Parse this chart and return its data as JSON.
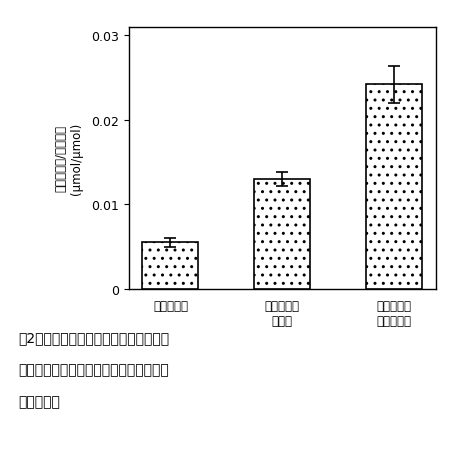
{
  "categories": [
    "贯蔵開始時",
    "空気下贯蔵\n２日後",
    "突気条件下\n贯蔵２日後"
  ],
  "values": [
    0.0055,
    0.013,
    0.0242
  ],
  "errors": [
    0.0005,
    0.0008,
    0.0022
  ],
  "ylim": [
    0,
    0.031
  ],
  "yticks": [
    0,
    0.01,
    0.02,
    0.03
  ],
  "ytick_labels": [
    "0",
    "0.01",
    "0.02",
    "0.03"
  ],
  "ylabel_line1": "遊離脂肪酸/全脂肪酸",
  "ylabel_line2": "(μmol/μmol)",
  "bar_color": "white",
  "bar_edgecolor": "black",
  "bar_width": 0.5,
  "hatch": "..",
  "figure_title_line1": "図2　花蓄部から調製したミクロソーム",
  "figure_title_line2": "膜脂質における全脂肪酸に対する遊離脂",
  "figure_title_line3": "肪酸の割合",
  "figsize": [
    4.59,
    4.6
  ],
  "dpi": 100
}
